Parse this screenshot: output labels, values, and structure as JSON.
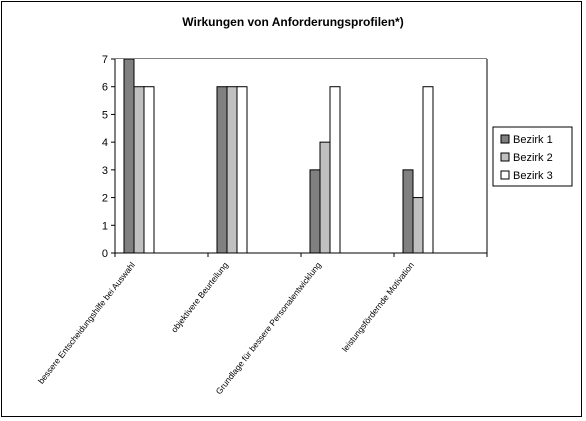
{
  "chart_data": {
    "type": "bar",
    "title": "Wirkungen von Anforderungsprofilen*)",
    "xlabel": "",
    "ylabel": "",
    "ylim": [
      0,
      7
    ],
    "yticks": [
      0,
      1,
      2,
      3,
      4,
      5,
      6,
      7
    ],
    "categories": [
      "bessere Entscheidungshilfe bei Auswahl",
      "objektivere Beurteilung",
      "Grundlage für bessere Personalentwicklung",
      "leistungsfördernde Motivation"
    ],
    "series": [
      {
        "name": "Bezirk 1",
        "values": [
          7,
          6,
          3,
          3
        ],
        "color": "#808080"
      },
      {
        "name": "Bezirk 2",
        "values": [
          6,
          6,
          4,
          2
        ],
        "color": "#c0c0c0"
      },
      {
        "name": "Bezirk 3",
        "values": [
          6,
          6,
          6,
          6
        ],
        "color": "#ffffff"
      }
    ],
    "grid": true,
    "legend": "right",
    "plot_background": "#ffffff",
    "gridline_color": "#000000"
  }
}
